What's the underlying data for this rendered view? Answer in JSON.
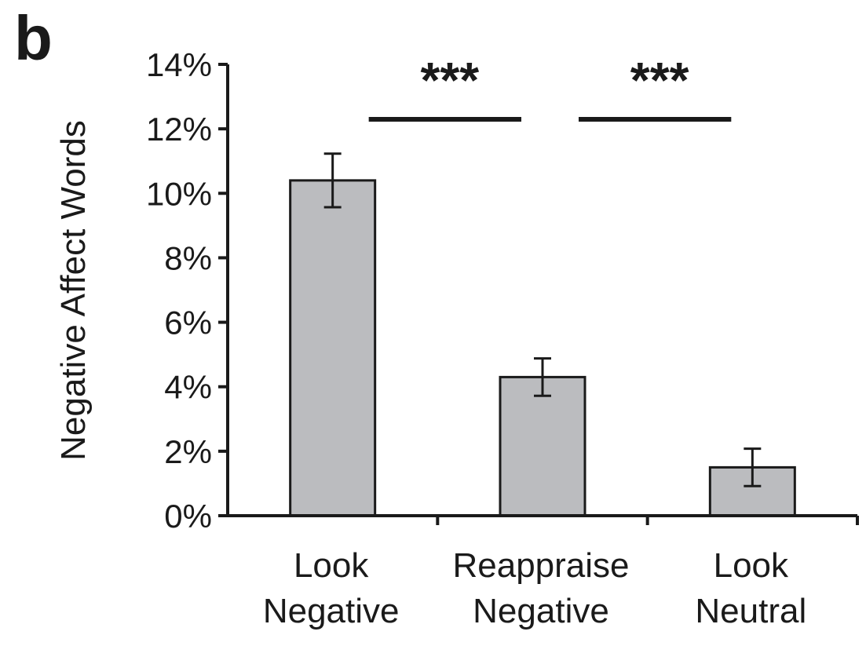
{
  "panel_label": "b",
  "chart_data": {
    "type": "bar",
    "ylabel": "Negative Affect Words",
    "ylim": [
      0,
      14
    ],
    "yticks": [
      {
        "value": 0,
        "label": "0%"
      },
      {
        "value": 2,
        "label": "2%"
      },
      {
        "value": 4,
        "label": "4%"
      },
      {
        "value": 6,
        "label": "6%"
      },
      {
        "value": 8,
        "label": "8%"
      },
      {
        "value": 10,
        "label": "10%"
      },
      {
        "value": 12,
        "label": "12%"
      },
      {
        "value": 14,
        "label": "14%"
      }
    ],
    "categories": [
      {
        "line1": "Look",
        "line2": "Negative"
      },
      {
        "line1": "Reappraise",
        "line2": "Negative"
      },
      {
        "line1": "Look",
        "line2": "Neutral"
      }
    ],
    "values": [
      10.4,
      4.3,
      1.5
    ],
    "errors": [
      0.83,
      0.58,
      0.58
    ],
    "bar_color": "#bbbcbf",
    "significance": [
      {
        "from": 0,
        "to": 1,
        "label": "***"
      },
      {
        "from": 1,
        "to": 2,
        "label": "***"
      }
    ],
    "grid": false,
    "legend": "none"
  }
}
